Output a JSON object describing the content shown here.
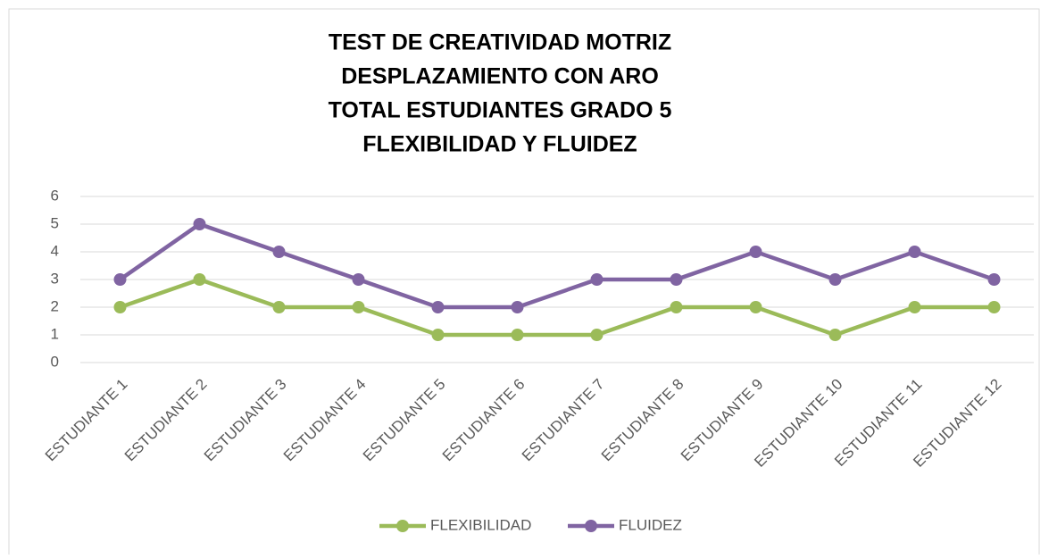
{
  "chart_data": {
    "type": "line",
    "title": [
      "TEST DE CREATIVIDAD MOTRIZ",
      "DESPLAZAMIENTO CON ARO",
      "TOTAL ESTUDIANTES GRADO 5",
      "FLEXIBILIDAD Y FLUIDEZ"
    ],
    "categories": [
      "ESTUDIANTE 1",
      "ESTUDIANTE 2",
      "ESTUDIANTE 3",
      "ESTUDIANTE 4",
      "ESTUDIANTE 5",
      "ESTUDIANTE 6",
      "ESTUDIANTE 7",
      "ESTUDIANTE 8",
      "ESTUDIANTE 9",
      "ESTUDIANTE 10",
      "ESTUDIANTE 11",
      "ESTUDIANTE 12"
    ],
    "series": [
      {
        "name": "FLEXIBILIDAD",
        "color": "#9bbb59",
        "values": [
          2,
          3,
          2,
          2,
          1,
          1,
          1,
          2,
          2,
          1,
          2,
          2
        ]
      },
      {
        "name": "FLUIDEZ",
        "color": "#8064a2",
        "values": [
          3,
          5,
          4,
          3,
          2,
          2,
          3,
          3,
          4,
          3,
          4,
          3
        ]
      }
    ],
    "ylim": [
      0,
      6
    ],
    "yticks": [
      0,
      1,
      2,
      3,
      4,
      5,
      6
    ],
    "grid": true,
    "legend": "bottom"
  }
}
